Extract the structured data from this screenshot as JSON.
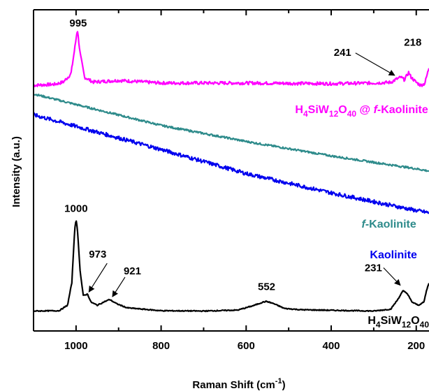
{
  "chart_data": {
    "type": "line",
    "title": "",
    "xlabel": "Raman Shift (cm",
    "xlabel_sup": "-1",
    "xlabel_suffix": ")",
    "ylabel": "Intensity (a.u.)",
    "x_reversed": true,
    "xlim": [
      1100,
      170
    ],
    "xticks": [
      1000,
      800,
      600,
      400,
      200
    ],
    "y_ticks_labeled": false,
    "grid": false,
    "series": [
      {
        "key": "hsiw_kaol",
        "label_parts": [
          [
            "H",
            ""
          ],
          [
            "4",
            "sub"
          ],
          [
            "SiW",
            ""
          ],
          [
            "12",
            "sub"
          ],
          [
            "O",
            ""
          ],
          [
            "40",
            "sub"
          ],
          [
            " @ ",
            ""
          ],
          [
            "f",
            "ital"
          ],
          [
            "-Kaolinite",
            ""
          ]
        ],
        "color": "#ff00ff",
        "points": [
          [
            1100,
            0.765
          ],
          [
            1050,
            0.768
          ],
          [
            1030,
            0.775
          ],
          [
            1012,
            0.8
          ],
          [
            1003,
            0.88
          ],
          [
            997,
            0.94
          ],
          [
            990,
            0.86
          ],
          [
            980,
            0.79
          ],
          [
            960,
            0.775
          ],
          [
            900,
            0.78
          ],
          [
            800,
            0.772
          ],
          [
            600,
            0.772
          ],
          [
            400,
            0.77
          ],
          [
            300,
            0.772
          ],
          [
            260,
            0.774
          ],
          [
            245,
            0.785
          ],
          [
            236,
            0.79
          ],
          [
            228,
            0.782
          ],
          [
            222,
            0.795
          ],
          [
            218,
            0.805
          ],
          [
            212,
            0.79
          ],
          [
            200,
            0.774
          ],
          [
            190,
            0.765
          ],
          [
            180,
            0.77
          ],
          [
            172,
            0.81
          ],
          [
            170,
            0.82
          ]
        ],
        "noise": 0.005
      },
      {
        "key": "f_kaol",
        "label_parts": [
          [
            "f",
            "ital"
          ],
          [
            "-Kaolinite",
            ""
          ]
        ],
        "color": "#2e8b8b",
        "points": [
          [
            1100,
            0.738
          ],
          [
            1000,
            0.705
          ],
          [
            800,
            0.64
          ],
          [
            600,
            0.59
          ],
          [
            400,
            0.545
          ],
          [
            200,
            0.505
          ],
          [
            170,
            0.498
          ]
        ],
        "noise": 0.003
      },
      {
        "key": "kaol",
        "label_parts": [
          [
            "Kaolinite",
            ""
          ]
        ],
        "color": "#0000ee",
        "points": [
          [
            1100,
            0.673
          ],
          [
            1000,
            0.637
          ],
          [
            800,
            0.565
          ],
          [
            600,
            0.49
          ],
          [
            400,
            0.43
          ],
          [
            200,
            0.375
          ],
          [
            170,
            0.368
          ]
        ],
        "noise": 0.006
      },
      {
        "key": "hsiw",
        "label_parts": [
          [
            "H",
            ""
          ],
          [
            "4",
            "sub"
          ],
          [
            "SiW",
            ""
          ],
          [
            "12",
            "sub"
          ],
          [
            "O",
            ""
          ],
          [
            "40",
            "sub"
          ]
        ],
        "color": "#000000",
        "points": [
          [
            1100,
            0.062
          ],
          [
            1040,
            0.063
          ],
          [
            1020,
            0.08
          ],
          [
            1010,
            0.15
          ],
          [
            1003,
            0.32
          ],
          [
            1000,
            0.345
          ],
          [
            997,
            0.32
          ],
          [
            990,
            0.18
          ],
          [
            983,
            0.11
          ],
          [
            973,
            0.115
          ],
          [
            965,
            0.09
          ],
          [
            950,
            0.08
          ],
          [
            935,
            0.09
          ],
          [
            921,
            0.098
          ],
          [
            905,
            0.085
          ],
          [
            880,
            0.072
          ],
          [
            800,
            0.063
          ],
          [
            700,
            0.062
          ],
          [
            620,
            0.065
          ],
          [
            585,
            0.078
          ],
          [
            560,
            0.09
          ],
          [
            552,
            0.092
          ],
          [
            535,
            0.085
          ],
          [
            510,
            0.07
          ],
          [
            470,
            0.066
          ],
          [
            300,
            0.062
          ],
          [
            260,
            0.068
          ],
          [
            245,
            0.095
          ],
          [
            231,
            0.125
          ],
          [
            222,
            0.118
          ],
          [
            210,
            0.09
          ],
          [
            195,
            0.08
          ],
          [
            182,
            0.09
          ],
          [
            175,
            0.13
          ],
          [
            170,
            0.15
          ]
        ],
        "noise": 0.0015
      }
    ],
    "annotations": [
      {
        "text": "995",
        "series": "hsiw_kaol",
        "peak_x": 995
      },
      {
        "text": "241",
        "series": "hsiw_kaol",
        "peak_x": 241,
        "arrow": true
      },
      {
        "text": "218",
        "series": "hsiw_kaol",
        "peak_x": 218
      },
      {
        "text": "1000",
        "series": "hsiw",
        "peak_x": 1000
      },
      {
        "text": "973",
        "series": "hsiw",
        "peak_x": 973,
        "arrow": true
      },
      {
        "text": "921",
        "series": "hsiw",
        "peak_x": 921,
        "arrow": true
      },
      {
        "text": "552",
        "series": "hsiw",
        "peak_x": 552
      },
      {
        "text": "231",
        "series": "hsiw",
        "peak_x": 231,
        "arrow": true
      }
    ]
  }
}
